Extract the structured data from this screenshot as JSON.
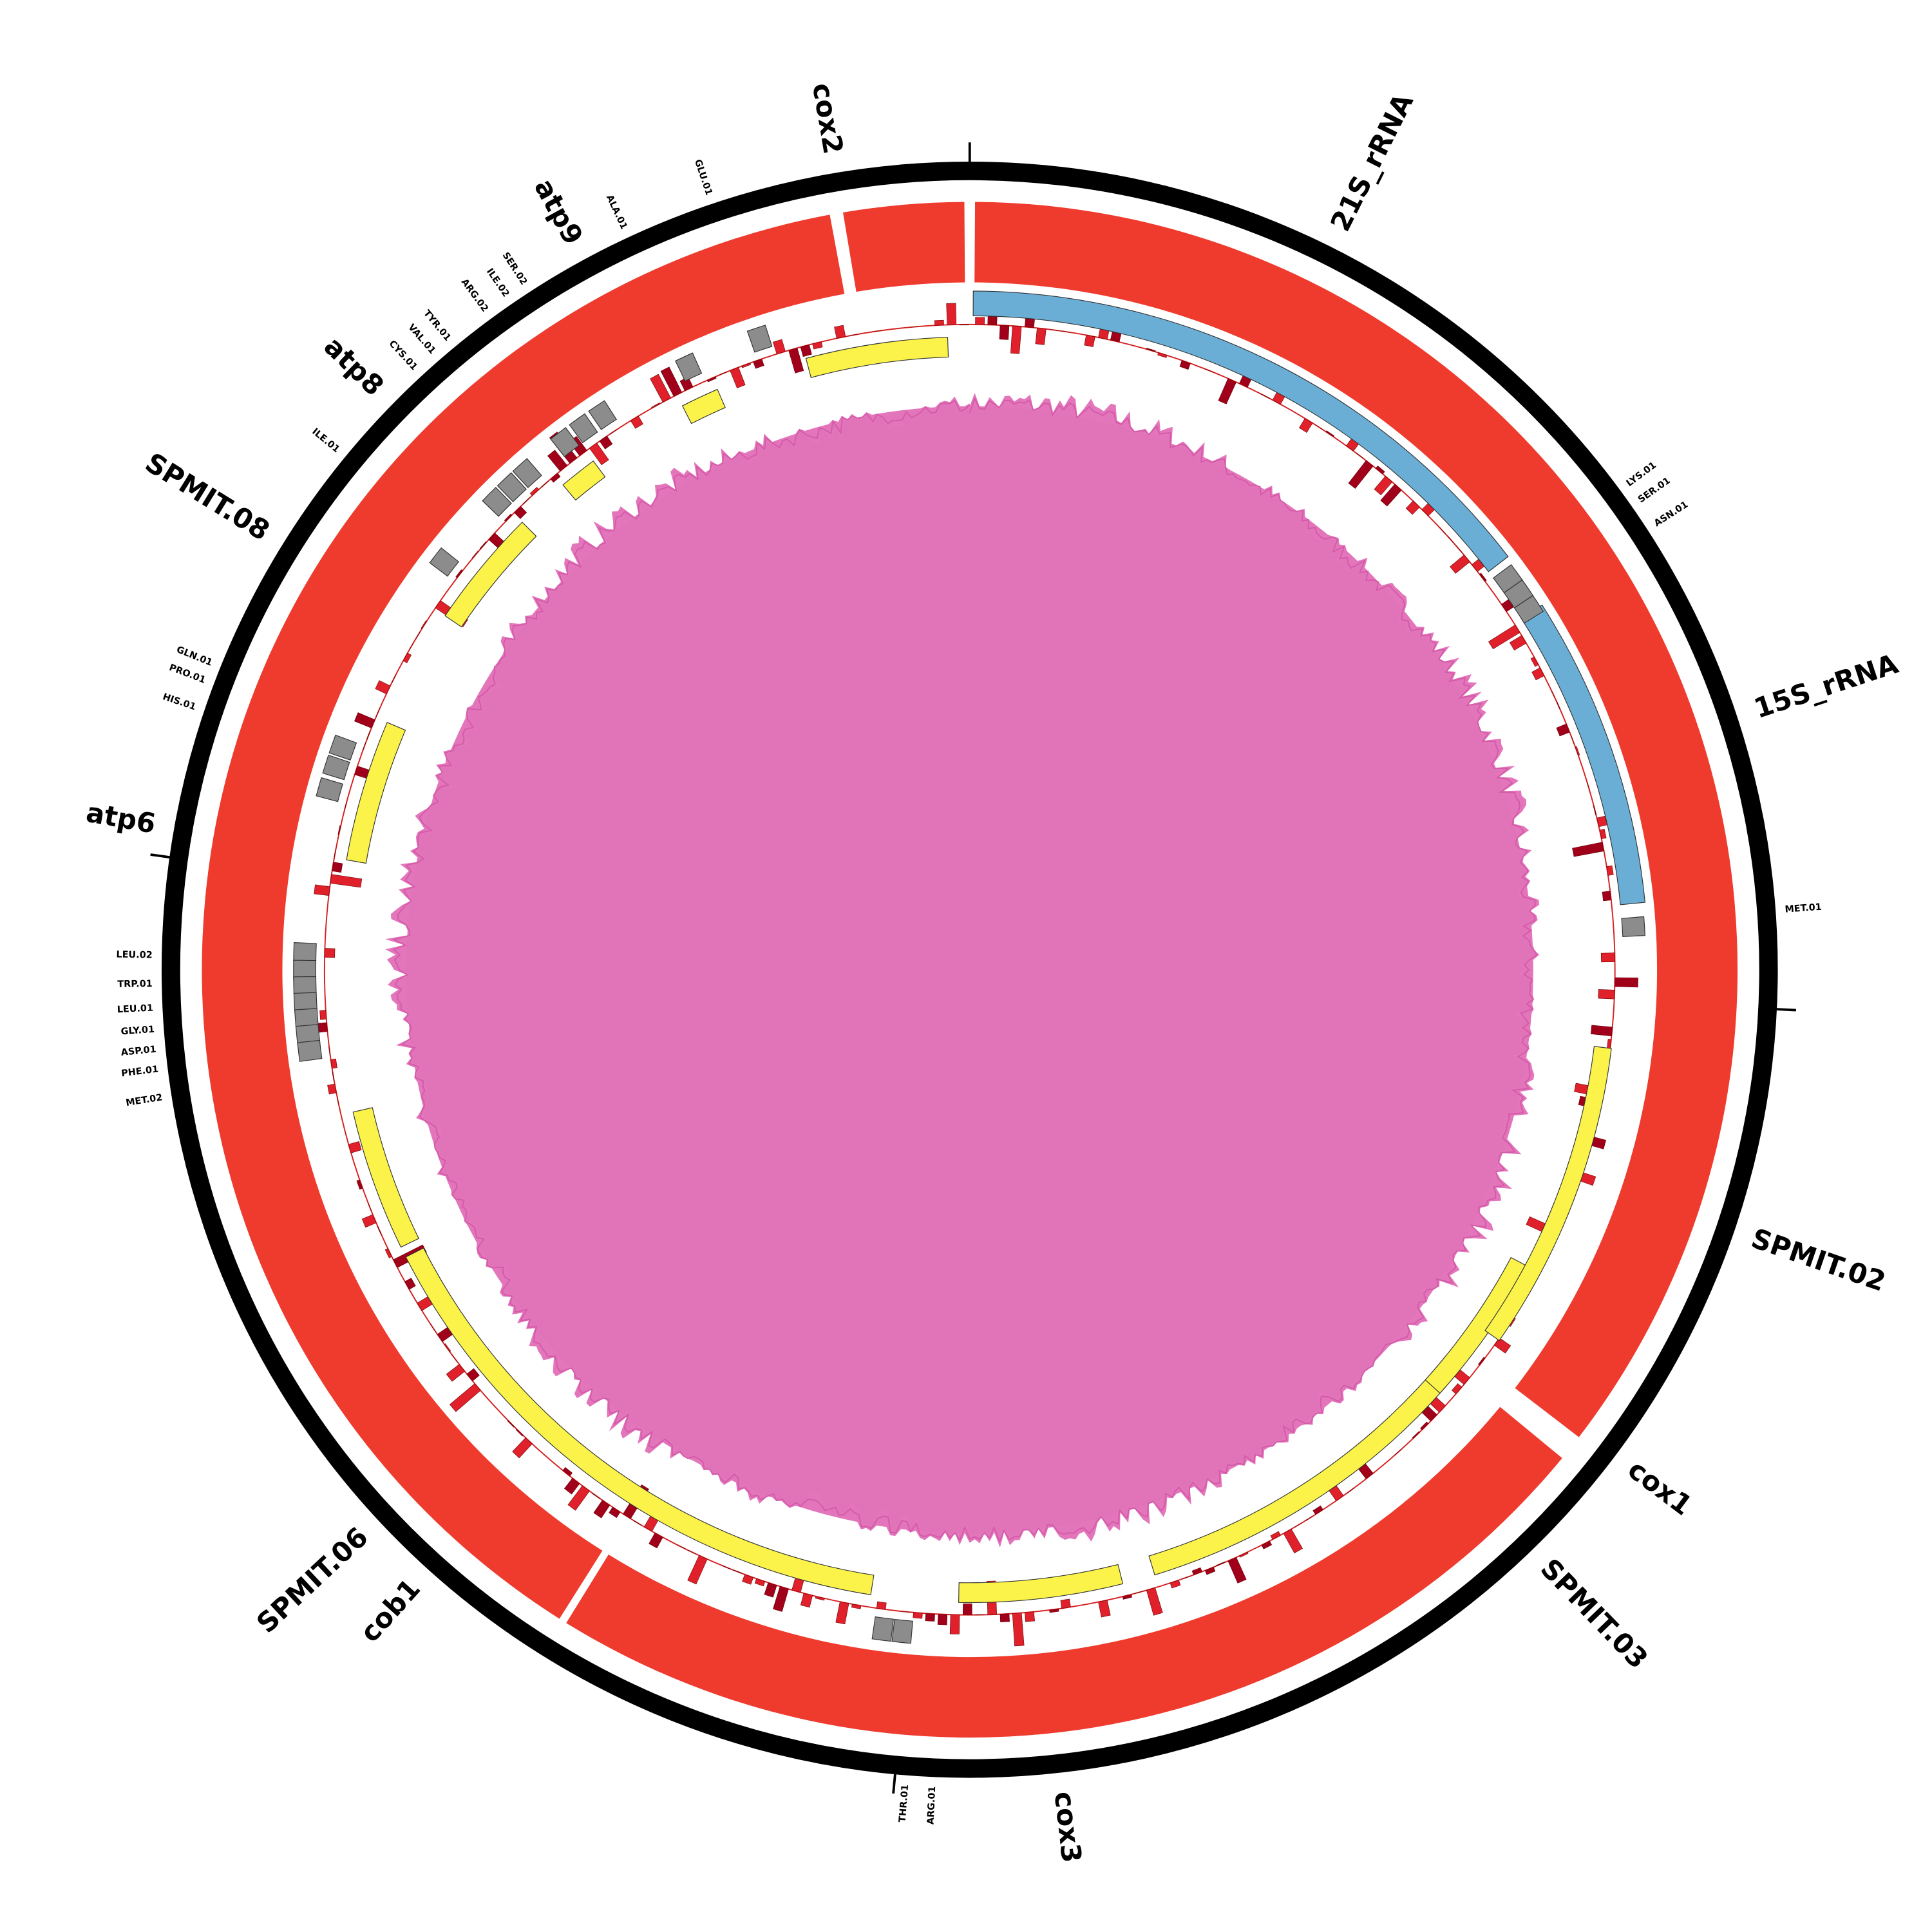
{
  "genes": [
    "cox2",
    "21S_rRNA",
    "15S_rRNA",
    "SPMIT.02",
    "cox1",
    "SPMIT.03",
    "cox3",
    "cob1",
    "SPMIT.06",
    "atp6",
    "SPMIT.08",
    "atp8",
    "atp9"
  ],
  "trnas": [
    "GLU.01",
    "ALA.01",
    "SER.02",
    "ILE.02",
    "ARG.02",
    "TYR.01",
    "VAL.01",
    "CYS.01",
    "ILE.01",
    "GLN.01",
    "PRO.01",
    "HIS.01",
    "LEU.02",
    "TRP.01",
    "LEU.01",
    "GLY.01",
    "ASP.01",
    "PHE.01",
    "MET.02",
    "THR.01",
    "ARG.01",
    "MET.01",
    "LYS.01",
    "SER.01",
    "ASN.01"
  ]
}
